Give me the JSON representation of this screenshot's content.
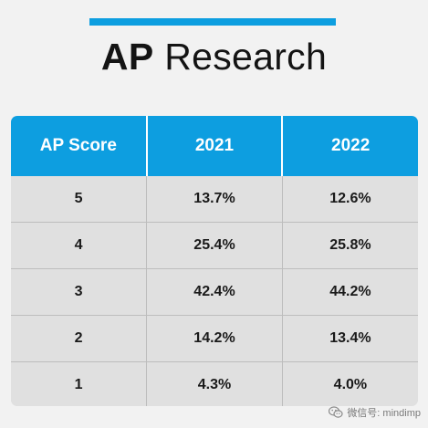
{
  "header": {
    "title_bold": "AP",
    "title_rest": "Research"
  },
  "table": {
    "columns": [
      "AP Score",
      "2021",
      "2022"
    ],
    "rows": [
      [
        "5",
        "13.7%",
        "12.6%"
      ],
      [
        "4",
        "25.4%",
        "25.8%"
      ],
      [
        "3",
        "42.4%",
        "44.2%"
      ],
      [
        "2",
        "14.2%",
        "13.4%"
      ],
      [
        "1",
        "4.3%",
        "4.0%"
      ]
    ]
  },
  "watermark": {
    "text": "微信号: mindimp",
    "icon": "wechat-icon"
  },
  "colors": {
    "accent": "#0d9ee0",
    "background": "#f2f2f2",
    "cell": "#e0e0e0",
    "text": "#141414"
  }
}
